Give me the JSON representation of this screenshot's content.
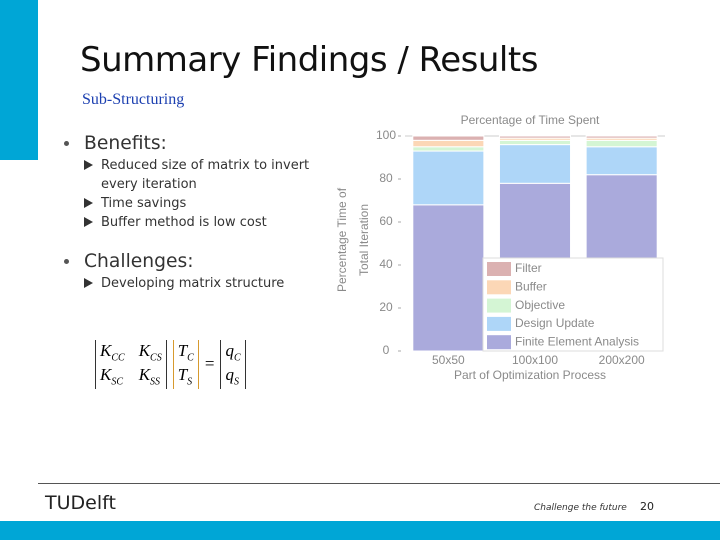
{
  "slide": {
    "title": "Summary Findings / Results",
    "subtitle": "Sub-Structuring",
    "sections": [
      {
        "heading": "Benefits:",
        "items": [
          "Reduced size of matrix to invert every iteration",
          "Time savings",
          "Buffer method is low cost"
        ]
      },
      {
        "heading": "Challenges:",
        "items": [
          "Developing matrix structure"
        ]
      }
    ],
    "equation": {
      "matrix": [
        [
          {
            "base": "K",
            "sub": "CC"
          },
          {
            "base": "K",
            "sub": "CS"
          }
        ],
        [
          {
            "base": "K",
            "sub": "SC"
          },
          {
            "base": "K",
            "sub": "SS"
          }
        ]
      ],
      "unknowns": [
        {
          "base": "T",
          "sub": "C"
        },
        {
          "base": "T",
          "sub": "S"
        }
      ],
      "equals": "=",
      "rhs": [
        {
          "base": "q",
          "sub": "C"
        },
        {
          "base": "q",
          "sub": "S"
        }
      ]
    },
    "footer": {
      "logo": "TUDelft",
      "tagline": "Challenge the future",
      "page": "20"
    }
  },
  "chart_data": {
    "type": "stacked_bar",
    "title": "Percentage of Time Spent",
    "ylabel": [
      "Percentage Time of",
      "Total Iteration"
    ],
    "xlabel": "Part of Optimization Process",
    "categories": [
      "50x50",
      "100x100",
      "200x200"
    ],
    "series": [
      {
        "name": "Finite Element Analysis",
        "color": "#aaaadc",
        "values": [
          68,
          78,
          82
        ]
      },
      {
        "name": "Design Update",
        "color": "#aed6f8",
        "values": [
          25,
          18,
          13
        ]
      },
      {
        "name": "Objective",
        "color": "#d4f5d4",
        "values": [
          2,
          2,
          3
        ]
      },
      {
        "name": "Buffer",
        "color": "#fcd7b6",
        "values": [
          3,
          1,
          1
        ]
      },
      {
        "name": "Filter",
        "color": "#dbb1b1",
        "values": [
          2,
          1,
          1
        ]
      }
    ],
    "ylim": [
      0,
      100
    ],
    "yticks": [
      0,
      20,
      40,
      60,
      80,
      100
    ]
  }
}
